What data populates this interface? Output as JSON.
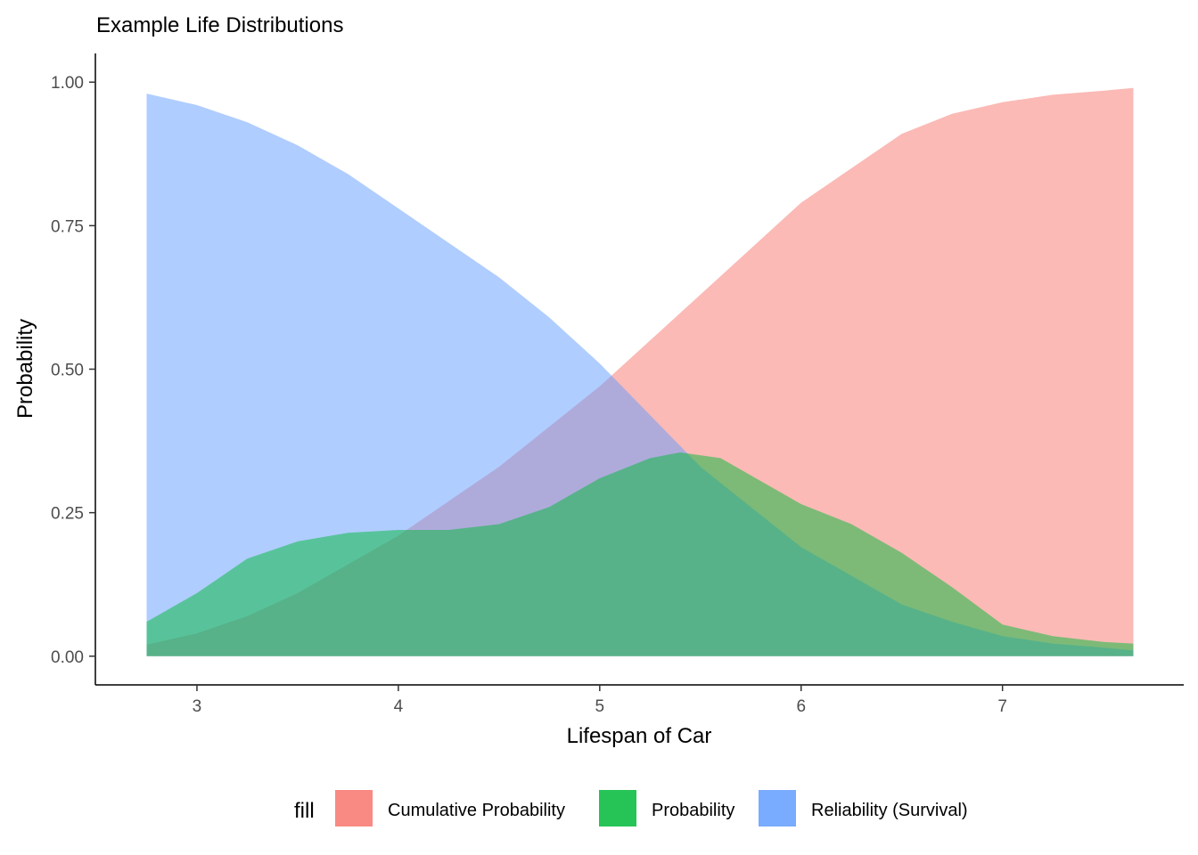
{
  "chart_data": {
    "type": "area",
    "title": "Example Life Distributions",
    "xlabel": "Lifespan of Car",
    "ylabel": "Probability",
    "xlim": [
      2.5,
      7.9
    ],
    "ylim": [
      -0.05,
      1.05
    ],
    "x_ticks": [
      3,
      4,
      5,
      6,
      7
    ],
    "y_ticks": [
      0,
      0.25,
      0.5,
      0.75,
      1
    ],
    "x_tick_labels": [
      "3",
      "4",
      "5",
      "6",
      "7"
    ],
    "y_tick_labels": [
      "0.00",
      "0.25",
      "0.50",
      "0.75",
      "1.00"
    ],
    "grid": false,
    "legend": {
      "title": "fill",
      "position": "bottom"
    },
    "series": [
      {
        "name": "Cumulative Probability",
        "color": "#F8766D",
        "points": [
          [
            2.75,
            0.02
          ],
          [
            3.0,
            0.04
          ],
          [
            3.25,
            0.07
          ],
          [
            3.5,
            0.11
          ],
          [
            3.75,
            0.16
          ],
          [
            4.0,
            0.21
          ],
          [
            4.25,
            0.27
          ],
          [
            4.5,
            0.33
          ],
          [
            4.75,
            0.4
          ],
          [
            5.0,
            0.47
          ],
          [
            5.25,
            0.55
          ],
          [
            5.5,
            0.63
          ],
          [
            5.75,
            0.71
          ],
          [
            6.0,
            0.79
          ],
          [
            6.25,
            0.85
          ],
          [
            6.5,
            0.91
          ],
          [
            6.75,
            0.945
          ],
          [
            7.0,
            0.965
          ],
          [
            7.25,
            0.978
          ],
          [
            7.5,
            0.985
          ],
          [
            7.65,
            0.99
          ]
        ]
      },
      {
        "name": "Reliability (Survival)",
        "color": "#619CFF",
        "points": [
          [
            2.75,
            0.98
          ],
          [
            3.0,
            0.96
          ],
          [
            3.25,
            0.93
          ],
          [
            3.5,
            0.89
          ],
          [
            3.75,
            0.84
          ],
          [
            4.0,
            0.78
          ],
          [
            4.25,
            0.72
          ],
          [
            4.5,
            0.66
          ],
          [
            4.75,
            0.59
          ],
          [
            5.0,
            0.51
          ],
          [
            5.25,
            0.42
          ],
          [
            5.5,
            0.33
          ],
          [
            5.75,
            0.26
          ],
          [
            6.0,
            0.19
          ],
          [
            6.25,
            0.14
          ],
          [
            6.5,
            0.09
          ],
          [
            6.75,
            0.06
          ],
          [
            7.0,
            0.035
          ],
          [
            7.25,
            0.022
          ],
          [
            7.5,
            0.015
          ],
          [
            7.65,
            0.01
          ]
        ]
      },
      {
        "name": "Probability",
        "color": "#00BA38",
        "points": [
          [
            2.75,
            0.06
          ],
          [
            3.0,
            0.11
          ],
          [
            3.25,
            0.17
          ],
          [
            3.5,
            0.2
          ],
          [
            3.75,
            0.215
          ],
          [
            4.0,
            0.22
          ],
          [
            4.25,
            0.22
          ],
          [
            4.5,
            0.23
          ],
          [
            4.75,
            0.26
          ],
          [
            5.0,
            0.31
          ],
          [
            5.25,
            0.345
          ],
          [
            5.4,
            0.355
          ],
          [
            5.6,
            0.345
          ],
          [
            5.75,
            0.315
          ],
          [
            6.0,
            0.265
          ],
          [
            6.25,
            0.23
          ],
          [
            6.5,
            0.18
          ],
          [
            6.75,
            0.12
          ],
          [
            7.0,
            0.055
          ],
          [
            7.25,
            0.035
          ],
          [
            7.5,
            0.025
          ],
          [
            7.65,
            0.022
          ]
        ]
      }
    ],
    "legend_order": [
      "Cumulative Probability",
      "Probability",
      "Reliability (Survival)"
    ]
  }
}
